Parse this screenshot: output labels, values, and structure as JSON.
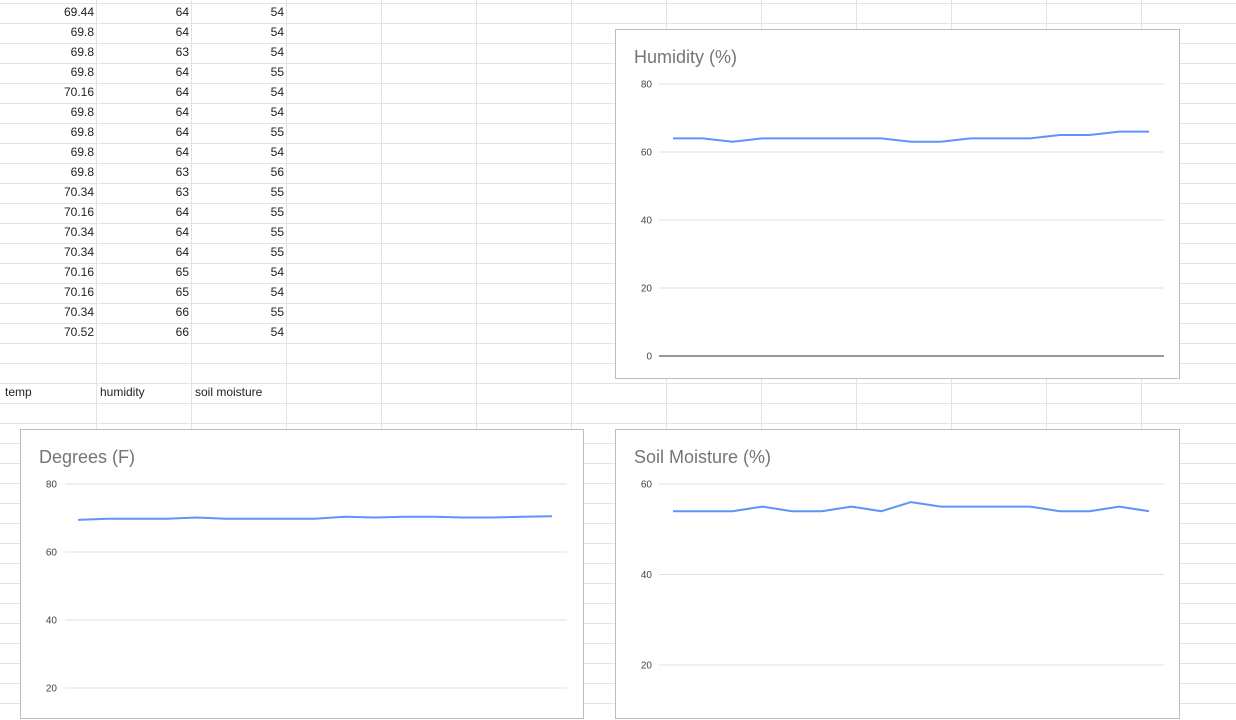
{
  "sheet": {
    "rows": [
      [
        "69.44",
        "64",
        "54"
      ],
      [
        "69.8",
        "64",
        "54"
      ],
      [
        "69.8",
        "63",
        "54"
      ],
      [
        "69.8",
        "64",
        "55"
      ],
      [
        "70.16",
        "64",
        "54"
      ],
      [
        "69.8",
        "64",
        "54"
      ],
      [
        "69.8",
        "64",
        "55"
      ],
      [
        "69.8",
        "64",
        "54"
      ],
      [
        "69.8",
        "63",
        "56"
      ],
      [
        "70.34",
        "63",
        "55"
      ],
      [
        "70.16",
        "64",
        "55"
      ],
      [
        "70.34",
        "64",
        "55"
      ],
      [
        "70.34",
        "64",
        "55"
      ],
      [
        "70.16",
        "65",
        "54"
      ],
      [
        "70.16",
        "65",
        "54"
      ],
      [
        "70.34",
        "66",
        "55"
      ],
      [
        "70.52",
        "66",
        "54"
      ]
    ],
    "headers": [
      "temp",
      "humidity",
      "soil moisture"
    ]
  },
  "chart_data": [
    {
      "type": "line",
      "title": "Humidity (%)",
      "y_ticks": [
        "0",
        "20",
        "40",
        "60",
        "80"
      ],
      "ylim": [
        0,
        80
      ],
      "color": "#5b95f9",
      "values": [
        64,
        64,
        63,
        64,
        64,
        64,
        64,
        64,
        63,
        63,
        64,
        64,
        64,
        65,
        65,
        66,
        66
      ]
    },
    {
      "type": "line",
      "title": "Degrees (F)",
      "y_ticks": [
        "20",
        "40",
        "60",
        "80"
      ],
      "ylim": [
        20,
        80
      ],
      "color": "#5b95f9",
      "values": [
        69.44,
        69.8,
        69.8,
        69.8,
        70.16,
        69.8,
        69.8,
        69.8,
        69.8,
        70.34,
        70.16,
        70.34,
        70.34,
        70.16,
        70.16,
        70.34,
        70.52
      ]
    },
    {
      "type": "line",
      "title": "Soil Moisture (%)",
      "y_ticks": [
        "20",
        "40",
        "60"
      ],
      "ylim": [
        20,
        60
      ],
      "color": "#5b95f9",
      "values": [
        54,
        54,
        54,
        55,
        54,
        54,
        55,
        54,
        56,
        55,
        55,
        55,
        55,
        54,
        54,
        55,
        54
      ]
    }
  ]
}
